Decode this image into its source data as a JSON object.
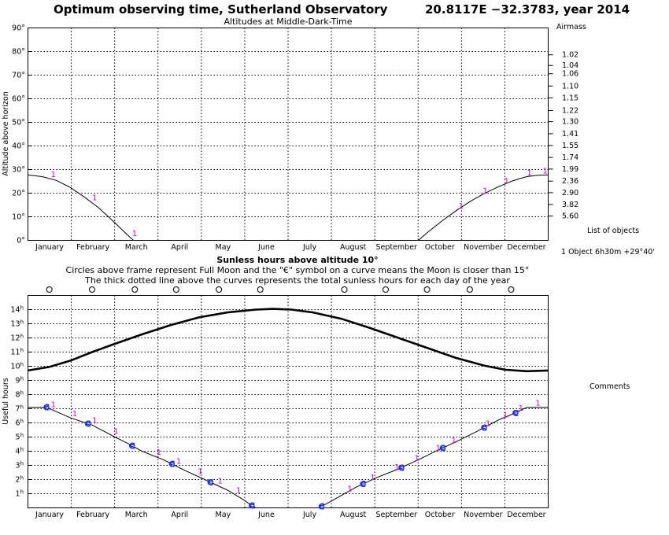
{
  "header": {
    "title": "Optimum observing time, Sutherland Observatory",
    "coords": "20.8117E −32.3783, year 2014"
  },
  "top_panel": {
    "subtitle": "Altitudes at Middle-Dark-Time",
    "ylabel": "Altitude above horizon",
    "airmass_label": "Airmass"
  },
  "bottom_panel": {
    "title": "Sunless hours above altitude 10°",
    "note1": "Circles above frame represent Full Moon and the \"€\" symbol on a curve means the Moon is closer than 15°",
    "note2": "The thick dotted line above the curves represents the total sunless hours for each day of the year",
    "ylabel": "Useful hours"
  },
  "side": {
    "list_label": "List of objects",
    "object_entry": "1 Object  6h30m +29°40'",
    "comments_label": "Comments"
  },
  "chart_data": [
    {
      "type": "line",
      "title": "Altitudes at Middle-Dark-Time",
      "ylabel": "Altitude above horizon",
      "xlabel": "",
      "x_range_days": [
        0,
        365
      ],
      "ylim": [
        0,
        90
      ],
      "categories": [
        "January",
        "February",
        "March",
        "April",
        "May",
        "June",
        "July",
        "August",
        "September",
        "October",
        "November",
        "December"
      ],
      "yticks": [
        "0°",
        "10°",
        "20°",
        "30°",
        "40°",
        "50°",
        "60°",
        "70°",
        "80°",
        "90°"
      ],
      "airmass_ticks": [
        {
          "value": "1.02",
          "alt": 78.6
        },
        {
          "value": "1.04",
          "alt": 74.1
        },
        {
          "value": "1.06",
          "alt": 70.6
        },
        {
          "value": "1.10",
          "alt": 65.4
        },
        {
          "value": "1.15",
          "alt": 60.4
        },
        {
          "value": "1.22",
          "alt": 55.0
        },
        {
          "value": "1.30",
          "alt": 50.3
        },
        {
          "value": "1.41",
          "alt": 45.2
        },
        {
          "value": "1.55",
          "alt": 40.2
        },
        {
          "value": "1.74",
          "alt": 35.1
        },
        {
          "value": "1.99",
          "alt": 30.2
        },
        {
          "value": "2.36",
          "alt": 25.1
        },
        {
          "value": "2.90",
          "alt": 20.2
        },
        {
          "value": "3.82",
          "alt": 15.2
        },
        {
          "value": "5.60",
          "alt": 10.3
        }
      ],
      "series": [
        {
          "name": "1",
          "segments": [
            [
              [
                0,
                27.7
              ],
              [
                10,
                27.0
              ],
              [
                20,
                25.4
              ],
              [
                30,
                22.3
              ],
              [
                40,
                18.2
              ],
              [
                50,
                13.6
              ],
              [
                60,
                8.0
              ],
              [
                70,
                2.2
              ],
              [
                74,
                0
              ]
            ],
            [
              [
                274,
                0
              ],
              [
                280,
                3.2
              ],
              [
                290,
                8.0
              ],
              [
                300,
                12.4
              ],
              [
                310,
                16.4
              ],
              [
                320,
                19.8
              ],
              [
                330,
                22.7
              ],
              [
                340,
                25.2
              ],
              [
                350,
                27.0
              ],
              [
                358,
                27.6
              ],
              [
                365,
                27.7
              ]
            ]
          ]
        }
      ],
      "labels_days": [
        15,
        44,
        72,
        98,
        301,
        318,
        333,
        349,
        360
      ]
    },
    {
      "type": "line",
      "title": "Sunless hours above altitude 10°",
      "ylabel": "Useful hours",
      "x_range_days": [
        0,
        365
      ],
      "ylim": [
        0,
        15
      ],
      "categories": [
        "January",
        "February",
        "March",
        "April",
        "May",
        "June",
        "July",
        "August",
        "September",
        "October",
        "November",
        "December"
      ],
      "yticks": [
        "1h",
        "2h",
        "3h",
        "4h",
        "5h",
        "6h",
        "7h",
        "8h",
        "9h",
        "10h",
        "11h",
        "12h",
        "13h",
        "14h"
      ],
      "series": [
        {
          "name": "total sunless hours",
          "style": "thick-dotted",
          "points": [
            [
              0,
              9.7
            ],
            [
              15,
              9.95
            ],
            [
              30,
              10.4
            ],
            [
              45,
              11.0
            ],
            [
              60,
              11.55
            ],
            [
              80,
              12.25
            ],
            [
              100,
              12.9
            ],
            [
              120,
              13.45
            ],
            [
              140,
              13.8
            ],
            [
              160,
              14.0
            ],
            [
              172,
              14.05
            ],
            [
              185,
              14.0
            ],
            [
              200,
              13.8
            ],
            [
              220,
              13.35
            ],
            [
              240,
              12.7
            ],
            [
              260,
              12.0
            ],
            [
              280,
              11.3
            ],
            [
              300,
              10.6
            ],
            [
              320,
              10.05
            ],
            [
              335,
              9.75
            ],
            [
              350,
              9.65
            ],
            [
              365,
              9.7
            ]
          ]
        },
        {
          "name": "1",
          "segments": [
            [
              [
                0,
                7.1
              ],
              [
                13,
                7.1
              ],
              [
                30,
                6.35
              ],
              [
                45,
                5.85
              ],
              [
                60,
                5.05
              ],
              [
                70,
                4.55
              ],
              [
                80,
                4.0
              ],
              [
                95,
                3.4
              ],
              [
                110,
                2.65
              ],
              [
                124,
                2.0
              ],
              [
                140,
                1.25
              ],
              [
                150,
                0.65
              ],
              [
                158,
                0.1
              ],
              [
                160,
                0
              ]
            ],
            [
              [
                204,
                0
              ],
              [
                206,
                0.1
              ],
              [
                215,
                0.6
              ],
              [
                230,
                1.45
              ],
              [
                245,
                2.15
              ],
              [
                260,
                2.75
              ],
              [
                275,
                3.45
              ],
              [
                285,
                3.95
              ],
              [
                300,
                4.65
              ],
              [
                315,
                5.4
              ],
              [
                330,
                6.2
              ],
              [
                343,
                6.75
              ],
              [
                350,
                7.1
              ],
              [
                365,
                7.1
              ]
            ]
          ]
        }
      ],
      "moon_markers_days": [
        13,
        42,
        73,
        101,
        128,
        157,
        206,
        235,
        262,
        291,
        320,
        342
      ],
      "full_moon_days": [
        15,
        45,
        75,
        104,
        134,
        163,
        222,
        251,
        280,
        310,
        339
      ],
      "labels_days": [
        15,
        30,
        44,
        59,
        89,
        103,
        118,
        132,
        145,
        223,
        239,
        256,
        270,
        285,
        296,
        320,
        332,
        343,
        355
      ]
    }
  ]
}
